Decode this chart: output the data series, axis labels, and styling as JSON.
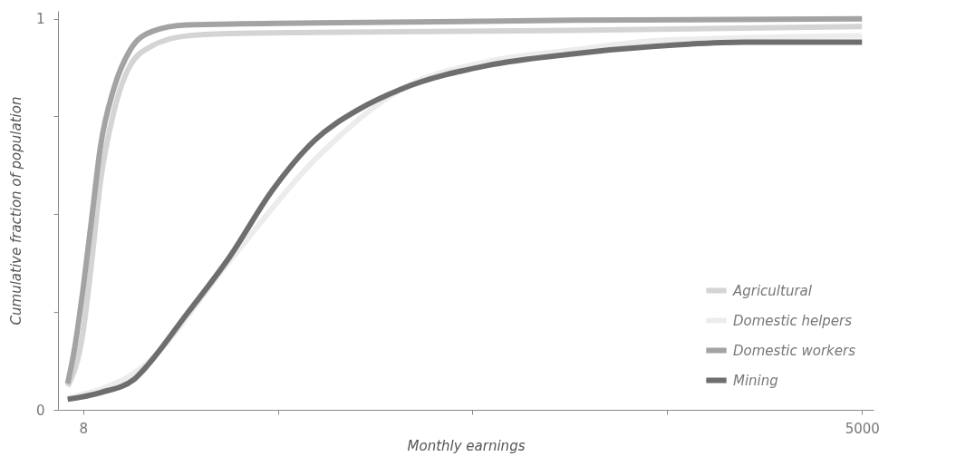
{
  "chart_data": {
    "type": "line",
    "xlabel": "Monthly earnings",
    "ylabel": "Cumulative fraction of population",
    "log": "x",
    "xlim": [
      6.5,
      5500
    ],
    "ylim": [
      0,
      1.02
    ],
    "xticks": [
      8,
      {
        "value": 40,
        "label": null
      },
      {
        "value": 200,
        "label": null
      },
      {
        "value": 1000,
        "label": null
      },
      5000
    ],
    "yticks": [
      0,
      {
        "value": 0.25,
        "label": null
      },
      {
        "value": 0.5,
        "label": null
      },
      {
        "value": 0.75,
        "label": null
      },
      1
    ],
    "grid": false,
    "legend": "bottom right",
    "line_style": "solid",
    "marker": "none",
    "series": [
      {
        "name": "Agricultural",
        "color": "#d4d4d4",
        "x": [
          7.04,
          8,
          8.59,
          9.22,
          10.3,
          11.8,
          14.1,
          18.8,
          26.8,
          54.4,
          457,
          5000
        ],
        "values": [
          0.06,
          0.2,
          0.38,
          0.58,
          0.76,
          0.88,
          0.93,
          0.956,
          0.962,
          0.965,
          0.97,
          0.98
        ]
      },
      {
        "name": "Domestic helpers",
        "color": "#ececec",
        "x": [
          7.04,
          13.1,
          26.8,
          54.4,
          111,
          225,
          457,
          931,
          5000
        ],
        "values": [
          0.03,
          0.11,
          0.38,
          0.64,
          0.82,
          0.89,
          0.92,
          0.944,
          0.956
        ]
      },
      {
        "name": "Domestic workers",
        "color": "#a3a3a3",
        "x": [
          7.04,
          7.45,
          8,
          8.59,
          9.22,
          10.3,
          11.8,
          14.1,
          18.8,
          54.4,
          457,
          5000
        ],
        "values": [
          0.067,
          0.156,
          0.31,
          0.49,
          0.67,
          0.82,
          0.92,
          0.967,
          0.984,
          0.989,
          0.996,
          1.0
        ]
      },
      {
        "name": "Mining",
        "color": "#6e6e6e",
        "x": [
          7.04,
          9.22,
          12.2,
          13.1,
          18.8,
          26.8,
          38.1,
          54.4,
          77.6,
          111,
          225,
          457,
          931,
          1890,
          5000
        ],
        "values": [
          0.027,
          0.044,
          0.078,
          0.1,
          0.244,
          0.39,
          0.56,
          0.69,
          0.767,
          0.82,
          0.88,
          0.91,
          0.93,
          0.94,
          0.94
        ]
      }
    ]
  }
}
